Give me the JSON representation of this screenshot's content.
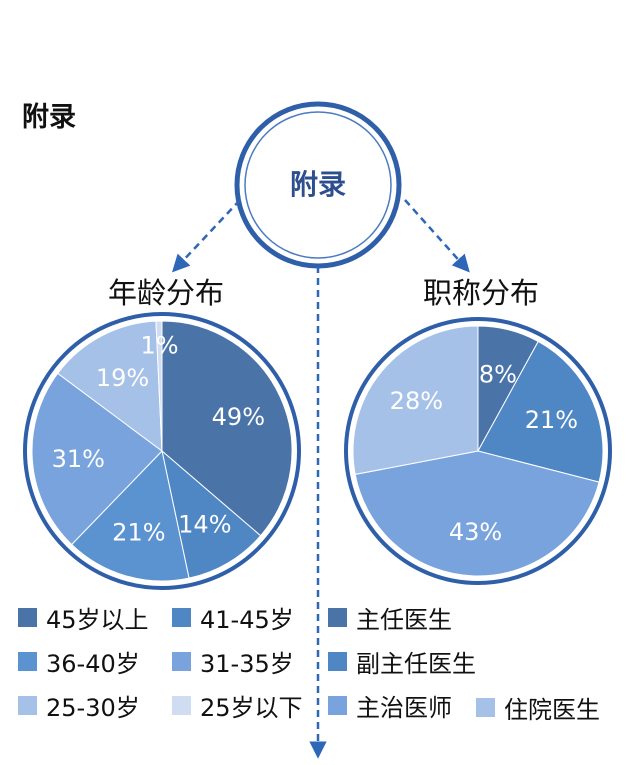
{
  "page_heading": "附录",
  "center_node": {
    "label": "附录"
  },
  "chart_data": [
    {
      "type": "pie",
      "title": "年龄分布",
      "categories": [
        "45岁以上",
        "41-45岁",
        "36-40岁",
        "31-35岁",
        "25-30岁",
        "25岁以下"
      ],
      "values": [
        49,
        14,
        21,
        31,
        19,
        1
      ],
      "value_labels": [
        "49%",
        "14%",
        "21%",
        "31%",
        "19%",
        "1%"
      ],
      "colors": [
        "#4a73a8",
        "#4f86c4",
        "#5b92d0",
        "#79a3dc",
        "#a6c1e8",
        "#cfdcf2"
      ],
      "legend": "bottom"
    },
    {
      "type": "pie",
      "title": "职称分布",
      "categories": [
        "主任医生",
        "副主任医生",
        "主治医师",
        "住院医生"
      ],
      "values": [
        8,
        21,
        43,
        28
      ],
      "value_labels": [
        "8%",
        "21%",
        "43%",
        "28%"
      ],
      "colors": [
        "#4a73a8",
        "#4f86c4",
        "#79a3dc",
        "#a6c1e8"
      ],
      "legend": "bottom"
    }
  ]
}
